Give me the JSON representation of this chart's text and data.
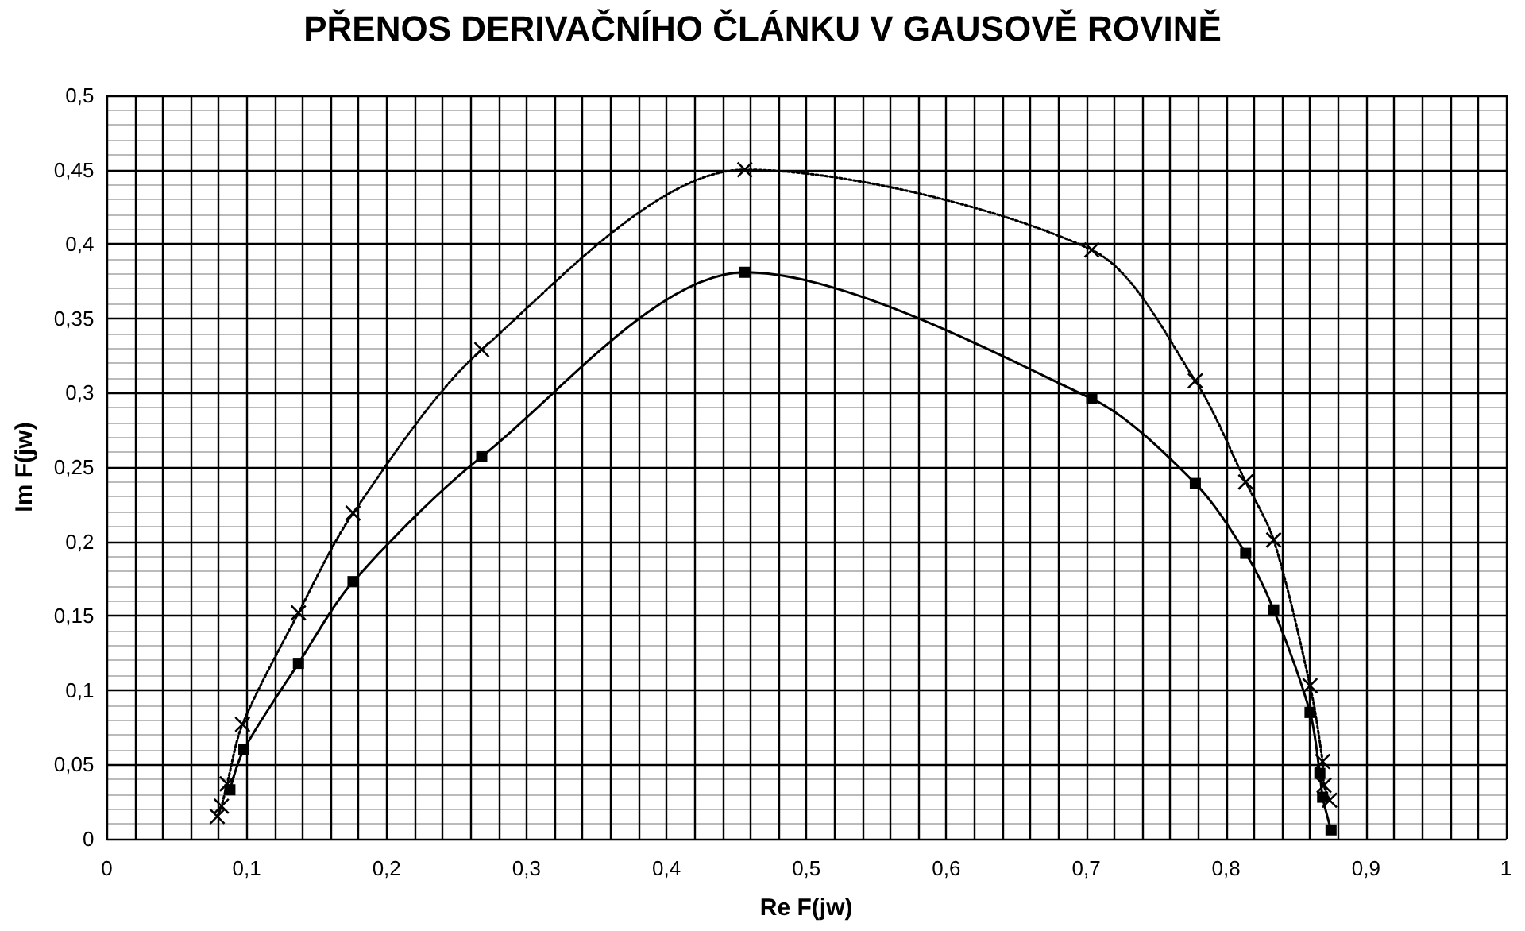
{
  "chart_data": {
    "type": "line",
    "title": "PŘENOS DERIVAČNÍHO ČLÁNKU V GAUSOVĚ ROVINĚ",
    "xlabel": "Re F(jw)",
    "ylabel": "Im F(jw)",
    "xlim": [
      0,
      1
    ],
    "ylim": [
      0,
      0.5
    ],
    "xticks": [
      {
        "value": 0,
        "label": "0"
      },
      {
        "value": 0.02,
        "label": null
      },
      {
        "value": 0.04,
        "label": null
      },
      {
        "value": 0.06,
        "label": null
      },
      {
        "value": 0.08,
        "label": null
      },
      {
        "value": 0.1,
        "label": "0,1"
      },
      {
        "value": 0.12,
        "label": null
      },
      {
        "value": 0.14,
        "label": null
      },
      {
        "value": 0.16,
        "label": null
      },
      {
        "value": 0.18,
        "label": null
      },
      {
        "value": 0.2,
        "label": "0,2"
      },
      {
        "value": 0.22,
        "label": null
      },
      {
        "value": 0.24,
        "label": null
      },
      {
        "value": 0.26,
        "label": null
      },
      {
        "value": 0.28,
        "label": null
      },
      {
        "value": 0.3,
        "label": "0,3"
      },
      {
        "value": 0.32,
        "label": null
      },
      {
        "value": 0.34,
        "label": null
      },
      {
        "value": 0.36,
        "label": null
      },
      {
        "value": 0.38,
        "label": null
      },
      {
        "value": 0.4,
        "label": "0,4"
      },
      {
        "value": 0.42,
        "label": null
      },
      {
        "value": 0.44,
        "label": null
      },
      {
        "value": 0.46,
        "label": null
      },
      {
        "value": 0.48,
        "label": null
      },
      {
        "value": 0.5,
        "label": "0,5"
      },
      {
        "value": 0.52,
        "label": null
      },
      {
        "value": 0.54,
        "label": null
      },
      {
        "value": 0.56,
        "label": null
      },
      {
        "value": 0.58,
        "label": null
      },
      {
        "value": 0.6,
        "label": "0,6"
      },
      {
        "value": 0.62,
        "label": null
      },
      {
        "value": 0.64,
        "label": null
      },
      {
        "value": 0.66,
        "label": null
      },
      {
        "value": 0.68,
        "label": null
      },
      {
        "value": 0.7,
        "label": "0,7"
      },
      {
        "value": 0.72,
        "label": null
      },
      {
        "value": 0.74,
        "label": null
      },
      {
        "value": 0.76,
        "label": null
      },
      {
        "value": 0.78,
        "label": null
      },
      {
        "value": 0.8,
        "label": "0,8"
      },
      {
        "value": 0.82,
        "label": null
      },
      {
        "value": 0.84,
        "label": null
      },
      {
        "value": 0.86,
        "label": null
      },
      {
        "value": 0.88,
        "label": null
      },
      {
        "value": 0.9,
        "label": "0,9"
      },
      {
        "value": 0.92,
        "label": null
      },
      {
        "value": 0.94,
        "label": null
      },
      {
        "value": 0.96,
        "label": null
      },
      {
        "value": 0.98,
        "label": null
      },
      {
        "value": 1,
        "label": "1"
      }
    ],
    "yticks": [
      {
        "value": 0,
        "label": "0"
      },
      {
        "value": 0.05,
        "label": "0,05"
      },
      {
        "value": 0.1,
        "label": "0,1"
      },
      {
        "value": 0.15,
        "label": "0,15"
      },
      {
        "value": 0.2,
        "label": "0,2"
      },
      {
        "value": 0.25,
        "label": "0,25"
      },
      {
        "value": 0.3,
        "label": "0,3"
      },
      {
        "value": 0.35,
        "label": "0,35"
      },
      {
        "value": 0.4,
        "label": "0,4"
      },
      {
        "value": 0.45,
        "label": "0,45"
      },
      {
        "value": 0.5,
        "label": "0,5"
      }
    ],
    "grid": true,
    "series": [
      {
        "color": "#000000",
        "marker": "square",
        "line_style": "solid",
        "x": [
          0.088,
          0.098,
          0.137,
          0.176,
          0.268,
          0.456,
          0.704,
          0.778,
          0.814,
          0.834,
          0.86,
          0.867,
          0.869,
          0.875
        ],
        "values": [
          0.033,
          0.06,
          0.118,
          0.173,
          0.257,
          0.381,
          0.296,
          0.239,
          0.192,
          0.154,
          0.085,
          0.044,
          0.028,
          0.006
        ]
      },
      {
        "color": "#000000",
        "marker": "cross",
        "line_style": "dotted",
        "x": [
          0.079,
          0.082,
          0.086,
          0.097,
          0.137,
          0.176,
          0.268,
          0.456,
          0.704,
          0.778,
          0.814,
          0.834,
          0.86,
          0.869,
          0.87,
          0.874
        ],
        "values": [
          0.015,
          0.022,
          0.037,
          0.077,
          0.152,
          0.219,
          0.329,
          0.45,
          0.396,
          0.308,
          0.24,
          0.201,
          0.103,
          0.052,
          0.036,
          0.026
        ]
      }
    ]
  }
}
